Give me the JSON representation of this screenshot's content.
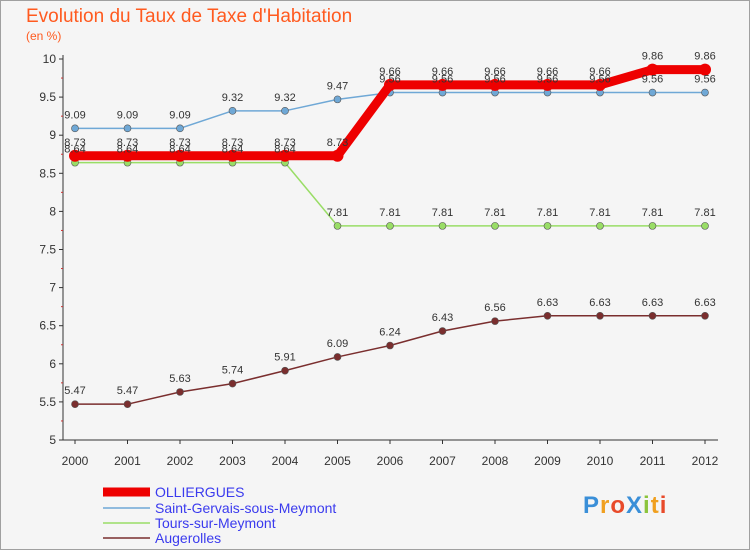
{
  "header": {
    "title": "Evolution du Taux de Taxe d'Habitation",
    "subtitle": "(en %)"
  },
  "logo": {
    "text": "ProXiti",
    "letters": [
      {
        "ch": "P",
        "color": "#3a8fd8"
      },
      {
        "ch": "r",
        "color": "#f0a020"
      },
      {
        "ch": "o",
        "color": "#e84a2a"
      },
      {
        "ch": "X",
        "color": "#3a8fd8"
      },
      {
        "ch": "i",
        "color": "#8cc43c"
      },
      {
        "ch": "t",
        "color": "#f0a020"
      },
      {
        "ch": "i",
        "color": "#e84a2a"
      }
    ]
  },
  "chart_data": {
    "type": "line",
    "title": "Evolution du Taux de Taxe d'Habitation",
    "subtitle": "(en %)",
    "xlabel": "",
    "ylabel": "",
    "categories": [
      "2000",
      "2001",
      "2002",
      "2003",
      "2004",
      "2005",
      "2006",
      "2007",
      "2008",
      "2009",
      "2010",
      "2011",
      "2012"
    ],
    "ylim": [
      5,
      10
    ],
    "yticks": [
      "5",
      "5.5",
      "6",
      "6.5",
      "7",
      "7.5",
      "8",
      "8.5",
      "9",
      "9.5",
      "10"
    ],
    "grid": false,
    "legend_position": "bottom-left",
    "series": [
      {
        "name": "OLLIERGUES",
        "color": "#ee0000",
        "values": [
          8.73,
          8.73,
          8.73,
          8.73,
          8.73,
          8.73,
          9.66,
          9.66,
          9.66,
          9.66,
          9.66,
          9.86,
          9.86
        ],
        "labels": [
          "8.73",
          "8.73",
          "8.73",
          "8.73",
          "8.73",
          "8.73",
          "9.66",
          "9.66",
          "9.66",
          "9.66",
          "9.66",
          "9.86",
          "9.86"
        ]
      },
      {
        "name": "Saint-Gervais-sous-Meymont",
        "color": "#6fa8d6",
        "values": [
          9.09,
          9.09,
          9.09,
          9.32,
          9.32,
          9.47,
          9.56,
          9.56,
          9.56,
          9.56,
          9.56,
          9.56,
          9.56
        ],
        "labels": [
          "9.09",
          "9.09",
          "9.09",
          "9.32",
          "9.32",
          "9.47",
          "9.56",
          "9.56",
          "9.56",
          "9.56",
          "9.56",
          "9.56",
          "9.56"
        ]
      },
      {
        "name": "Tours-sur-Meymont",
        "color": "#99dd66",
        "values": [
          8.64,
          8.64,
          8.64,
          8.64,
          8.64,
          7.81,
          7.81,
          7.81,
          7.81,
          7.81,
          7.81,
          7.81,
          7.81
        ],
        "labels": [
          "8.64",
          "8.64",
          "8.64",
          "8.64",
          "8.64",
          "7.81",
          "7.81",
          "7.81",
          "7.81",
          "7.81",
          "7.81",
          "7.81",
          "7.81"
        ]
      },
      {
        "name": "Augerolles",
        "color": "#7a2e2e",
        "values": [
          5.47,
          5.47,
          5.63,
          5.74,
          5.91,
          6.09,
          6.24,
          6.43,
          6.56,
          6.63,
          6.63,
          6.63,
          6.63
        ],
        "labels": [
          "5.47",
          "5.47",
          "5.63",
          "5.74",
          "5.91",
          "6.09",
          "6.24",
          "6.43",
          "6.56",
          "6.63",
          "6.63",
          "6.63",
          "6.63"
        ]
      }
    ]
  }
}
